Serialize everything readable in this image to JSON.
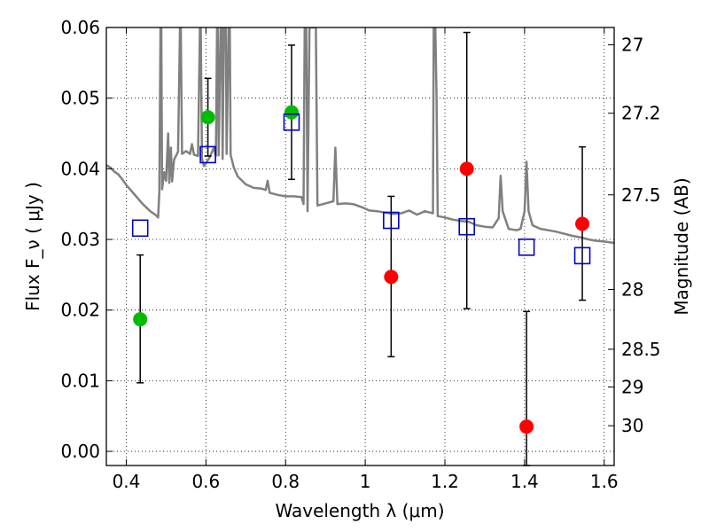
{
  "chart_data": {
    "type": "scatter",
    "xlabel": "Wavelength  λ (μm)",
    "ylabel": "Flux  F_ν  ( μJy )",
    "ylabel_right": "Magnitude (AB)",
    "xlim": [
      0.35,
      1.625
    ],
    "ylim": [
      -0.002,
      0.06
    ],
    "grid": true,
    "x_ticks": [
      0.4,
      0.6,
      0.8,
      1.0,
      1.2,
      1.4,
      1.6
    ],
    "x_tick_labels": [
      "0.4",
      "0.6",
      "0.8",
      "1",
      "1.2",
      "1.4",
      "1.6"
    ],
    "y_ticks": [
      0.0,
      0.01,
      0.02,
      0.03,
      0.04,
      0.05,
      0.06
    ],
    "y_tick_labels": [
      "0.00",
      "0.01",
      "0.02",
      "0.03",
      "0.04",
      "0.05",
      "0.06"
    ],
    "right_ticks": [
      27,
      27.2,
      27.5,
      28,
      28.5,
      29,
      30
    ],
    "right_tick_labels": [
      "27",
      "27.2",
      "27.5",
      "28",
      "28.5",
      "29",
      "30"
    ],
    "series": [
      {
        "kind": "line",
        "color": "#808080",
        "points": [
          [
            0.35,
            0.0405
          ],
          [
            0.36,
            0.0402
          ],
          [
            0.37,
            0.0396
          ],
          [
            0.38,
            0.0392
          ],
          [
            0.39,
            0.0385
          ],
          [
            0.4,
            0.0377
          ],
          [
            0.42,
            0.0364
          ],
          [
            0.44,
            0.0351
          ],
          [
            0.46,
            0.034
          ],
          [
            0.475,
            0.0334
          ],
          [
            0.48,
            0.0331
          ],
          [
            0.483,
            0.0367
          ],
          [
            0.486,
            0.06
          ],
          [
            0.488,
            0.06
          ],
          [
            0.49,
            0.0371
          ],
          [
            0.495,
            0.0395
          ],
          [
            0.5,
            0.0383
          ],
          [
            0.505,
            0.045
          ],
          [
            0.508,
            0.038
          ],
          [
            0.512,
            0.043
          ],
          [
            0.515,
            0.0382
          ],
          [
            0.52,
            0.0413
          ],
          [
            0.53,
            0.0424
          ],
          [
            0.535,
            0.06
          ],
          [
            0.537,
            0.06
          ],
          [
            0.54,
            0.0421
          ],
          [
            0.55,
            0.0425
          ],
          [
            0.56,
            0.0421
          ],
          [
            0.565,
            0.0435
          ],
          [
            0.57,
            0.042
          ],
          [
            0.58,
            0.0418
          ],
          [
            0.585,
            0.06
          ],
          [
            0.587,
            0.06
          ],
          [
            0.59,
            0.0414
          ],
          [
            0.595,
            0.0404
          ],
          [
            0.6,
            0.0408
          ],
          [
            0.61,
            0.0417
          ],
          [
            0.62,
            0.043
          ],
          [
            0.625,
            0.0418
          ],
          [
            0.628,
            0.06
          ],
          [
            0.63,
            0.06
          ],
          [
            0.632,
            0.0419
          ],
          [
            0.637,
            0.06
          ],
          [
            0.64,
            0.06
          ],
          [
            0.642,
            0.0414
          ],
          [
            0.645,
            0.06
          ],
          [
            0.648,
            0.06
          ],
          [
            0.65,
            0.06
          ],
          [
            0.652,
            0.0421
          ],
          [
            0.657,
            0.06
          ],
          [
            0.66,
            0.06
          ],
          [
            0.662,
            0.042
          ],
          [
            0.67,
            0.0402
          ],
          [
            0.68,
            0.0389
          ],
          [
            0.7,
            0.0378
          ],
          [
            0.72,
            0.0373
          ],
          [
            0.74,
            0.0372
          ],
          [
            0.75,
            0.037
          ],
          [
            0.755,
            0.0383
          ],
          [
            0.76,
            0.0366
          ],
          [
            0.78,
            0.0363
          ],
          [
            0.8,
            0.0361
          ],
          [
            0.82,
            0.0361
          ],
          [
            0.84,
            0.036
          ],
          [
            0.845,
            0.035
          ],
          [
            0.848,
            0.06
          ],
          [
            0.852,
            0.06
          ],
          [
            0.855,
            0.034
          ],
          [
            0.86,
            0.06
          ],
          [
            0.868,
            0.06
          ],
          [
            0.872,
            0.06
          ],
          [
            0.876,
            0.06
          ],
          [
            0.88,
            0.0348
          ],
          [
            0.9,
            0.0351
          ],
          [
            0.92,
            0.0354
          ],
          [
            0.925,
            0.043
          ],
          [
            0.93,
            0.035
          ],
          [
            0.95,
            0.0351
          ],
          [
            0.97,
            0.035
          ],
          [
            0.99,
            0.0346
          ],
          [
            1.01,
            0.0341
          ],
          [
            1.03,
            0.034
          ],
          [
            1.05,
            0.0338
          ],
          [
            1.07,
            0.0336
          ],
          [
            1.09,
            0.0337
          ],
          [
            1.11,
            0.0341
          ],
          [
            1.13,
            0.0335
          ],
          [
            1.15,
            0.034
          ],
          [
            1.17,
            0.0337
          ],
          [
            1.172,
            0.06
          ],
          [
            1.176,
            0.06
          ],
          [
            1.179,
            0.05
          ],
          [
            1.182,
            0.0333
          ],
          [
            1.2,
            0.0331
          ],
          [
            1.22,
            0.0328
          ],
          [
            1.24,
            0.0326
          ],
          [
            1.26,
            0.0325
          ],
          [
            1.28,
            0.032
          ],
          [
            1.3,
            0.0318
          ],
          [
            1.32,
            0.0317
          ],
          [
            1.335,
            0.033
          ],
          [
            1.34,
            0.039
          ],
          [
            1.345,
            0.034
          ],
          [
            1.36,
            0.0315
          ],
          [
            1.38,
            0.0313
          ],
          [
            1.39,
            0.0315
          ],
          [
            1.4,
            0.034
          ],
          [
            1.405,
            0.041
          ],
          [
            1.41,
            0.034
          ],
          [
            1.42,
            0.032
          ],
          [
            1.44,
            0.0315
          ],
          [
            1.46,
            0.0313
          ],
          [
            1.48,
            0.0311
          ],
          [
            1.5,
            0.0308
          ],
          [
            1.52,
            0.0305
          ],
          [
            1.54,
            0.0303
          ],
          [
            1.56,
            0.03
          ],
          [
            1.58,
            0.0298
          ],
          [
            1.6,
            0.0297
          ],
          [
            1.625,
            0.0295
          ]
        ]
      },
      {
        "kind": "scatter",
        "color": "#00bb00",
        "marker": "circle",
        "points": [
          {
            "x": 0.435,
            "y": 0.0187,
            "err_low": 0.0097,
            "err_high": 0.0278
          },
          {
            "x": 0.605,
            "y": 0.0473,
            "err_low": 0.0418,
            "err_high": 0.0528
          },
          {
            "x": 0.815,
            "y": 0.048,
            "err_low": 0.0385,
            "err_high": 0.0575
          }
        ]
      },
      {
        "kind": "scatter",
        "color": "#ff0000",
        "marker": "circle",
        "points": [
          {
            "x": 1.065,
            "y": 0.0247,
            "err_low": 0.0134,
            "err_high": 0.0361
          },
          {
            "x": 1.255,
            "y": 0.04,
            "err_low": 0.0202,
            "err_high": 0.0593
          },
          {
            "x": 1.405,
            "y": 0.0035,
            "err_low": -0.002,
            "err_high": 0.0198
          },
          {
            "x": 1.545,
            "y": 0.0322,
            "err_low": 0.0214,
            "err_high": 0.0431
          }
        ]
      },
      {
        "kind": "scatter",
        "color": "#0000cc",
        "marker": "open-square",
        "points": [
          {
            "x": 0.435,
            "y": 0.0316
          },
          {
            "x": 0.605,
            "y": 0.042
          },
          {
            "x": 0.815,
            "y": 0.0466
          },
          {
            "x": 1.065,
            "y": 0.0327
          },
          {
            "x": 1.255,
            "y": 0.0318
          },
          {
            "x": 1.405,
            "y": 0.0289
          },
          {
            "x": 1.545,
            "y": 0.0277
          }
        ]
      }
    ]
  }
}
